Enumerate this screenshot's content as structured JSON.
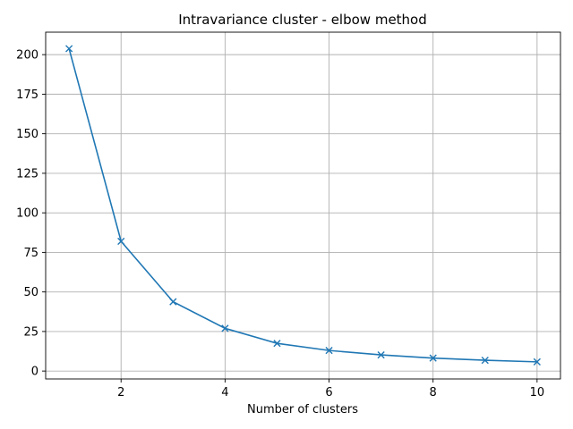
{
  "chart_data": {
    "type": "line",
    "title": "Intravariance cluster - elbow method",
    "xlabel": "Number of clusters",
    "ylabel": "",
    "x": [
      1,
      2,
      3,
      4,
      5,
      6,
      7,
      8,
      9,
      10
    ],
    "series": [
      {
        "values": [
          203.8,
          82.0,
          43.8,
          27.0,
          17.5,
          13.0,
          10.2,
          8.2,
          6.8,
          5.8
        ],
        "color": "#1f77b4",
        "marker": "x"
      }
    ],
    "xlim": [
      0.55,
      10.45
    ],
    "ylim": [
      -5.0,
      214.2
    ],
    "xticks": [
      2,
      4,
      6,
      8,
      10
    ],
    "yticks": [
      0,
      25,
      50,
      75,
      100,
      125,
      150,
      175,
      200
    ],
    "grid": true,
    "legend": "none"
  }
}
